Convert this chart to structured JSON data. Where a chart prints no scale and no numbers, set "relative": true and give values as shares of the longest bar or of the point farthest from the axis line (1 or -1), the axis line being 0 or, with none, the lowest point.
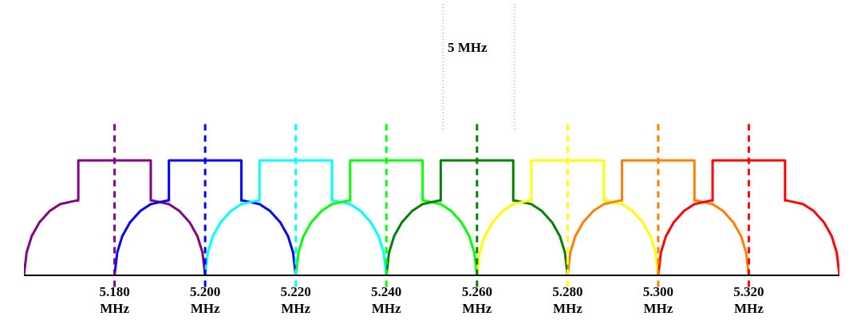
{
  "chart_data": {
    "type": "line",
    "relative": true,
    "line_style": "solid",
    "marker": "none",
    "xlim": [
      5.16,
      5.34
    ],
    "xticks": [
      {
        "value": 5.18,
        "label": "5.180 MHz"
      },
      {
        "value": 5.2,
        "label": "5.200 MHz"
      },
      {
        "value": 5.22,
        "label": "5.220 MHz"
      },
      {
        "value": 5.24,
        "label": "5.240 MHz"
      },
      {
        "value": 5.26,
        "label": "5.260 MHz"
      },
      {
        "value": 5.28,
        "label": "5.280 MHz"
      },
      {
        "value": 5.3,
        "label": "5.300 MHz"
      },
      {
        "value": 5.32,
        "label": "5.320 MHz"
      }
    ],
    "tick_labels": "x",
    "series": [
      {
        "color": "#800080",
        "x": [
          5.16,
          5.1606,
          5.1617,
          5.1634,
          5.1657,
          5.168,
          5.1715,
          5.172,
          5.172,
          5.188,
          5.188,
          5.1885,
          5.192,
          5.1943,
          5.1966,
          5.1983,
          5.1994,
          5.2
        ],
        "values": [
          0,
          0.2,
          0.34,
          0.46,
          0.56,
          0.62,
          0.65,
          0.65,
          1,
          1,
          0.65,
          0.65,
          0.62,
          0.56,
          0.46,
          0.34,
          0.2,
          0
        ]
      },
      {
        "color": "#0000ff",
        "x": [
          5.18,
          5.1806,
          5.1817,
          5.1834,
          5.1857,
          5.188,
          5.1915,
          5.192,
          5.192,
          5.208,
          5.208,
          5.2085,
          5.212,
          5.2143,
          5.2166,
          5.2183,
          5.2194,
          5.22
        ],
        "values": [
          0,
          0.2,
          0.34,
          0.46,
          0.56,
          0.62,
          0.65,
          0.65,
          1,
          1,
          0.65,
          0.65,
          0.62,
          0.56,
          0.46,
          0.34,
          0.2,
          0
        ]
      },
      {
        "color": "#00ffff",
        "x": [
          5.2,
          5.2006,
          5.2017,
          5.2034,
          5.2057,
          5.208,
          5.2115,
          5.212,
          5.212,
          5.228,
          5.228,
          5.2285,
          5.232,
          5.2343,
          5.2366,
          5.2383,
          5.2394,
          5.24
        ],
        "values": [
          0,
          0.2,
          0.34,
          0.46,
          0.56,
          0.62,
          0.65,
          0.65,
          1,
          1,
          0.65,
          0.65,
          0.62,
          0.56,
          0.46,
          0.34,
          0.2,
          0
        ]
      },
      {
        "color": "#00ff00",
        "x": [
          5.22,
          5.2206,
          5.2217,
          5.2234,
          5.2257,
          5.228,
          5.2315,
          5.232,
          5.232,
          5.248,
          5.248,
          5.2485,
          5.252,
          5.2543,
          5.2566,
          5.2583,
          5.2594,
          5.26
        ],
        "values": [
          0,
          0.2,
          0.34,
          0.46,
          0.56,
          0.62,
          0.65,
          0.65,
          1,
          1,
          0.65,
          0.65,
          0.62,
          0.56,
          0.46,
          0.34,
          0.2,
          0
        ]
      },
      {
        "color": "#008000",
        "x": [
          5.24,
          5.2406,
          5.2417,
          5.2434,
          5.2457,
          5.248,
          5.2515,
          5.252,
          5.252,
          5.268,
          5.268,
          5.2685,
          5.272,
          5.2743,
          5.2766,
          5.2783,
          5.2794,
          5.28
        ],
        "values": [
          0,
          0.2,
          0.34,
          0.46,
          0.56,
          0.62,
          0.65,
          0.65,
          1,
          1,
          0.65,
          0.65,
          0.62,
          0.56,
          0.46,
          0.34,
          0.2,
          0
        ]
      },
      {
        "color": "#ffff00",
        "x": [
          5.26,
          5.2606,
          5.2617,
          5.2634,
          5.2657,
          5.268,
          5.2715,
          5.272,
          5.272,
          5.288,
          5.288,
          5.2885,
          5.292,
          5.2943,
          5.2966,
          5.2983,
          5.2994,
          5.3
        ],
        "values": [
          0,
          0.2,
          0.34,
          0.46,
          0.56,
          0.62,
          0.65,
          0.65,
          1,
          1,
          0.65,
          0.65,
          0.62,
          0.56,
          0.46,
          0.34,
          0.2,
          0
        ]
      },
      {
        "color": "#ff8000",
        "x": [
          5.28,
          5.2806,
          5.2817,
          5.2834,
          5.2857,
          5.288,
          5.2915,
          5.292,
          5.292,
          5.308,
          5.308,
          5.3085,
          5.312,
          5.3143,
          5.3166,
          5.3183,
          5.3194,
          5.32
        ],
        "values": [
          0,
          0.2,
          0.34,
          0.46,
          0.56,
          0.62,
          0.65,
          0.65,
          1,
          1,
          0.65,
          0.65,
          0.62,
          0.56,
          0.46,
          0.34,
          0.2,
          0
        ]
      },
      {
        "color": "#ff0000",
        "x": [
          5.3,
          5.3006,
          5.3017,
          5.3034,
          5.3057,
          5.308,
          5.3115,
          5.312,
          5.312,
          5.328,
          5.328,
          5.3285,
          5.332,
          5.3343,
          5.3366,
          5.3383,
          5.3394,
          5.34
        ],
        "values": [
          0,
          0.2,
          0.34,
          0.46,
          0.56,
          0.62,
          0.65,
          0.65,
          1,
          1,
          0.65,
          0.65,
          0.62,
          0.56,
          0.46,
          0.34,
          0.2,
          0
        ]
      }
    ],
    "ref_lines": [
      {
        "axis": "x",
        "value": 5.18,
        "color": "#800080",
        "line_style": "dashed"
      },
      {
        "axis": "x",
        "value": 5.2,
        "color": "#0000ff",
        "line_style": "dashed"
      },
      {
        "axis": "x",
        "value": 5.22,
        "color": "#00ffff",
        "line_style": "dashed"
      },
      {
        "axis": "x",
        "value": 5.24,
        "color": "#00ff00",
        "line_style": "dashed"
      },
      {
        "axis": "x",
        "value": 5.26,
        "color": "#008000",
        "line_style": "dashed"
      },
      {
        "axis": "x",
        "value": 5.28,
        "color": "#ffff00",
        "line_style": "dashed"
      },
      {
        "axis": "x",
        "value": 5.3,
        "color": "#ff8000",
        "line_style": "dashed"
      },
      {
        "axis": "x",
        "value": 5.32,
        "color": "#ff0000",
        "line_style": "dashed"
      }
    ],
    "annotations": [
      "5 MHz"
    ]
  }
}
